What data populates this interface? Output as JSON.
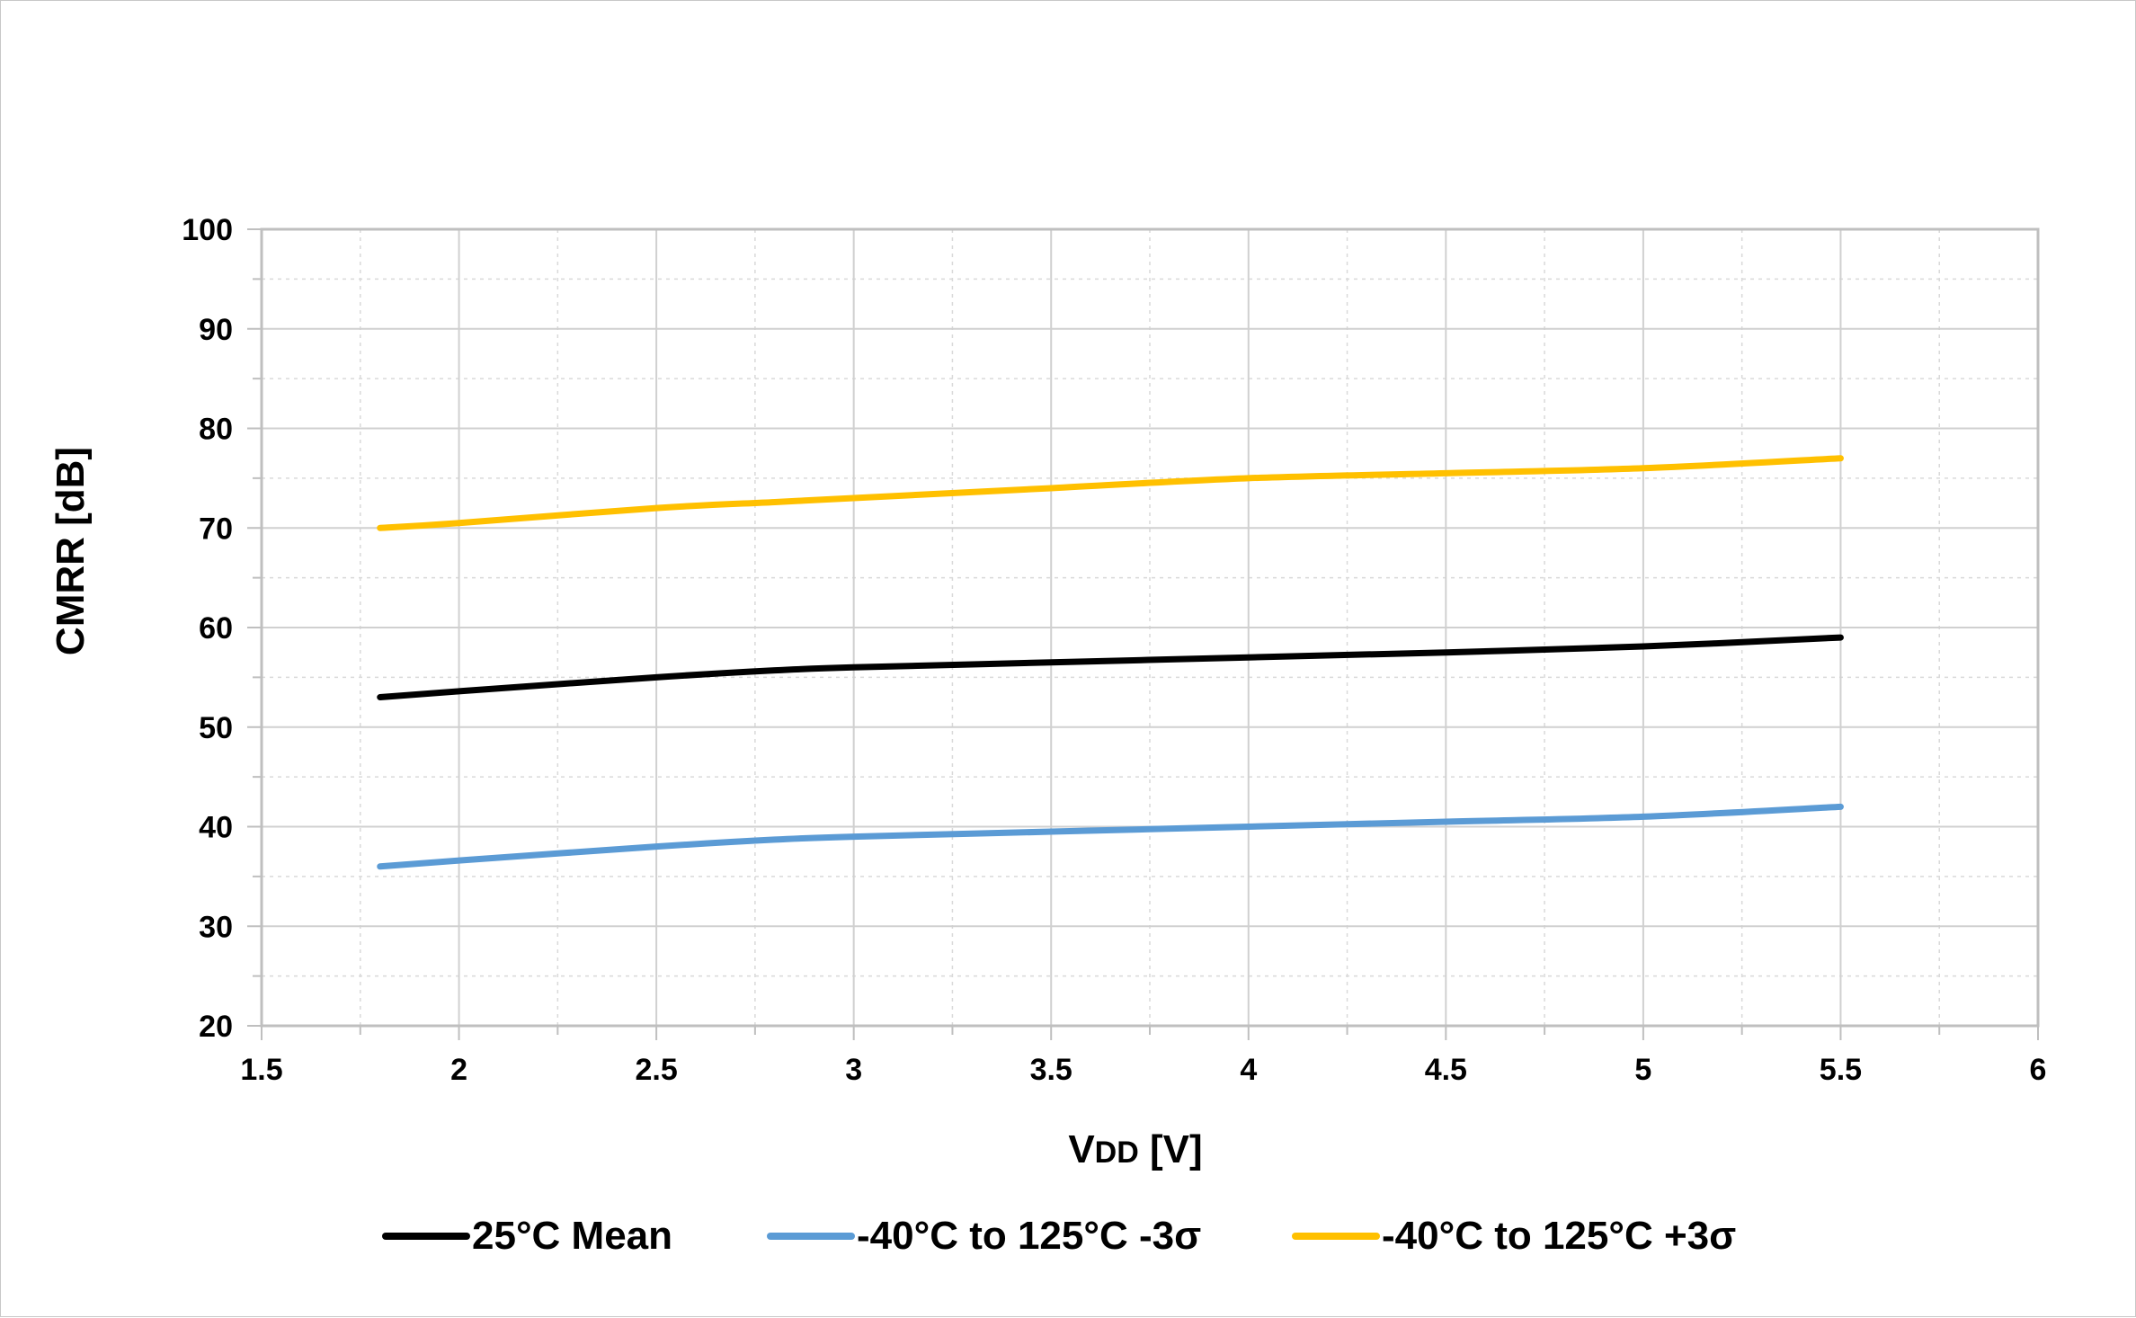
{
  "chart_data": {
    "type": "line",
    "xlabel_main": "V",
    "xlabel_sub": "DD",
    "xlabel_unit": " [V]",
    "ylabel": "CMRR [dB]",
    "xlim": [
      1.5,
      6
    ],
    "ylim": [
      20,
      100
    ],
    "x_major_step": 0.5,
    "y_major_step": 10,
    "x_minor_step": 0.25,
    "y_minor_step": 5,
    "x_tick_labels": [
      "1.5",
      "2",
      "2.5",
      "3",
      "3.5",
      "4",
      "4.5",
      "5",
      "5.5",
      "6"
    ],
    "y_tick_labels": [
      "20",
      "30",
      "40",
      "50",
      "60",
      "70",
      "80",
      "90",
      "100"
    ],
    "grid": true,
    "legend_position": "bottom",
    "series": [
      {
        "name": "25°C Mean",
        "color": "#000000",
        "x": [
          1.8,
          2.0,
          2.5,
          2.8,
          3.0,
          3.5,
          4.0,
          4.5,
          5.0,
          5.5
        ],
        "y": [
          53,
          53.6,
          55,
          55.7,
          56,
          56.5,
          57,
          57.5,
          58.1,
          59
        ]
      },
      {
        "name": "-40°C to 125°C -3σ",
        "color": "#5b9bd5",
        "x": [
          1.8,
          2.0,
          2.5,
          2.8,
          3.0,
          3.5,
          4.0,
          4.5,
          5.0,
          5.5
        ],
        "y": [
          36,
          36.6,
          38,
          38.7,
          39,
          39.5,
          40,
          40.5,
          41,
          42
        ]
      },
      {
        "name": "-40°C to 125°C +3σ",
        "color": "#ffc000",
        "x": [
          1.8,
          2.0,
          2.5,
          2.8,
          3.0,
          3.5,
          4.0,
          4.5,
          5.0,
          5.5
        ],
        "y": [
          70,
          70.5,
          72,
          72.6,
          73,
          74,
          75,
          75.5,
          76,
          77
        ]
      }
    ]
  }
}
